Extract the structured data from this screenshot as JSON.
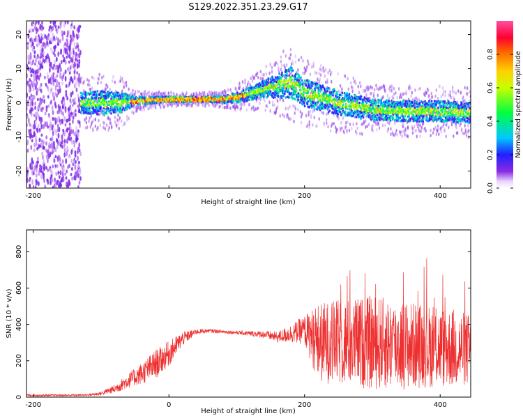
{
  "title": "S129.2022.351.23.29.G17",
  "chart_data": [
    {
      "type": "heatmap",
      "xlabel": "Height of straight line (km)",
      "ylabel": "Frequency (Hz)",
      "xlim": [
        -210,
        445
      ],
      "ylim": [
        -25,
        24
      ],
      "x_ticks": [
        -200,
        0,
        200,
        400
      ],
      "y_ticks": [
        -20,
        -10,
        0,
        10,
        20
      ],
      "colorbar": {
        "label": "Normalized spectral amplitude",
        "range": [
          0,
          1
        ],
        "ticks": [
          0.0,
          0.2,
          0.4,
          0.6,
          0.8
        ]
      },
      "signal_trace": {
        "x": [
          -130,
          -100,
          -70,
          -50,
          0,
          50,
          80,
          100,
          140,
          180,
          200,
          250,
          300,
          350,
          400,
          445
        ],
        "center_freq": [
          0,
          0,
          0,
          0.5,
          1,
          1,
          1,
          1.5,
          4,
          6,
          3,
          0,
          -2,
          -2.5,
          -2.5,
          -3
        ],
        "spread": [
          3,
          3.5,
          3,
          1.2,
          0.8,
          0.8,
          1,
          1.5,
          2.5,
          4.5,
          4,
          3.5,
          3,
          3,
          3,
          3
        ]
      },
      "noise_region_x": [
        -210,
        -130
      ]
    },
    {
      "type": "line",
      "xlabel": "Height of straight line (km)",
      "ylabel": "SNR (10 * v/v)",
      "xlim": [
        -210,
        445
      ],
      "ylim": [
        0,
        920
      ],
      "x_ticks": [
        -200,
        0,
        200,
        400
      ],
      "y_ticks": [
        0,
        200,
        400,
        600,
        800
      ],
      "series": [
        {
          "color": "#ee3030",
          "envelope": {
            "x": [
              -210,
              -150,
              -120,
              -100,
              -80,
              -60,
              -40,
              -20,
              0,
              20,
              40,
              60,
              100,
              140,
              160,
              180,
              200,
              220,
              260,
              300,
              340,
              380,
              420,
              445
            ],
            "mean": [
              10,
              10,
              12,
              20,
              45,
              90,
              130,
              180,
              240,
              320,
              360,
              365,
              355,
              345,
              330,
              350,
              370,
              300,
              300,
              300,
              290,
              280,
              270,
              260
            ],
            "amp": [
              5,
              5,
              6,
              10,
              25,
              40,
              60,
              80,
              70,
              40,
              15,
              10,
              10,
              20,
              30,
              50,
              80,
              220,
              240,
              260,
              250,
              230,
              220,
              200
            ]
          }
        }
      ]
    }
  ],
  "colors": {
    "snr_line": "#ee3030",
    "axis": "#000000"
  }
}
